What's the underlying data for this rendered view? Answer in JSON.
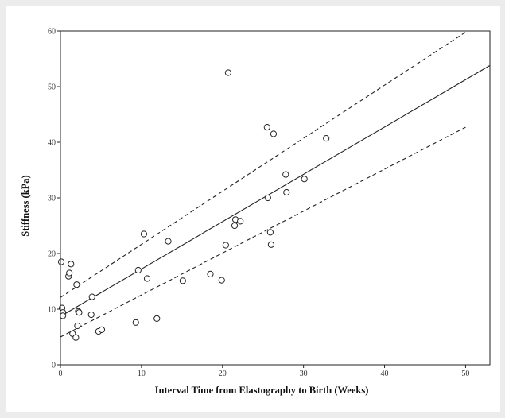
{
  "chart_data": {
    "type": "scatter",
    "xlabel": "Interval Time from Elastography to Birth (Weeks)",
    "ylabel": "Stiffness (kPa)",
    "xlim": [
      0,
      53
    ],
    "ylim": [
      0,
      60
    ],
    "x_ticks": [
      0,
      10,
      20,
      30,
      40,
      50
    ],
    "y_ticks": [
      0,
      10,
      20,
      30,
      40,
      50,
      60
    ],
    "grid": false,
    "points": [
      {
        "x": 0.1,
        "y": 18.5
      },
      {
        "x": 0.2,
        "y": 10.2
      },
      {
        "x": 0.3,
        "y": 9.4
      },
      {
        "x": 0.3,
        "y": 8.8
      },
      {
        "x": 1.0,
        "y": 15.9
      },
      {
        "x": 1.1,
        "y": 16.5
      },
      {
        "x": 1.3,
        "y": 18.1
      },
      {
        "x": 1.5,
        "y": 5.6
      },
      {
        "x": 1.9,
        "y": 4.9
      },
      {
        "x": 2.0,
        "y": 14.4
      },
      {
        "x": 2.1,
        "y": 7.0
      },
      {
        "x": 2.2,
        "y": 9.6
      },
      {
        "x": 2.3,
        "y": 9.4
      },
      {
        "x": 3.8,
        "y": 9.0
      },
      {
        "x": 3.9,
        "y": 12.2
      },
      {
        "x": 4.7,
        "y": 6.0
      },
      {
        "x": 5.1,
        "y": 6.3
      },
      {
        "x": 9.3,
        "y": 7.6
      },
      {
        "x": 9.6,
        "y": 17.0
      },
      {
        "x": 10.3,
        "y": 23.5
      },
      {
        "x": 10.7,
        "y": 15.5
      },
      {
        "x": 11.9,
        "y": 8.3
      },
      {
        "x": 13.3,
        "y": 22.2
      },
      {
        "x": 15.1,
        "y": 15.1
      },
      {
        "x": 18.5,
        "y": 16.3
      },
      {
        "x": 19.9,
        "y": 15.2
      },
      {
        "x": 20.4,
        "y": 21.5
      },
      {
        "x": 20.7,
        "y": 52.5
      },
      {
        "x": 21.5,
        "y": 25.0
      },
      {
        "x": 21.6,
        "y": 26.1
      },
      {
        "x": 22.2,
        "y": 25.8
      },
      {
        "x": 25.5,
        "y": 42.7
      },
      {
        "x": 25.6,
        "y": 30.0
      },
      {
        "x": 25.9,
        "y": 23.8
      },
      {
        "x": 26.0,
        "y": 21.6
      },
      {
        "x": 26.3,
        "y": 41.5
      },
      {
        "x": 27.8,
        "y": 34.2
      },
      {
        "x": 27.9,
        "y": 31.0
      },
      {
        "x": 30.1,
        "y": 33.4
      },
      {
        "x": 32.8,
        "y": 40.7
      }
    ],
    "fit_line": {
      "style": "solid",
      "x": [
        0,
        53
      ],
      "y": [
        8.7,
        53.8
      ]
    },
    "confidence_bands": [
      {
        "style": "dashed",
        "x": [
          0,
          50
        ],
        "y": [
          12.1,
          59.8
        ]
      },
      {
        "style": "dashed",
        "x": [
          0,
          50
        ],
        "y": [
          5.0,
          42.7
        ]
      }
    ],
    "colors": {
      "marker": "#222222",
      "line": "#222222",
      "axis": "#222222"
    }
  }
}
